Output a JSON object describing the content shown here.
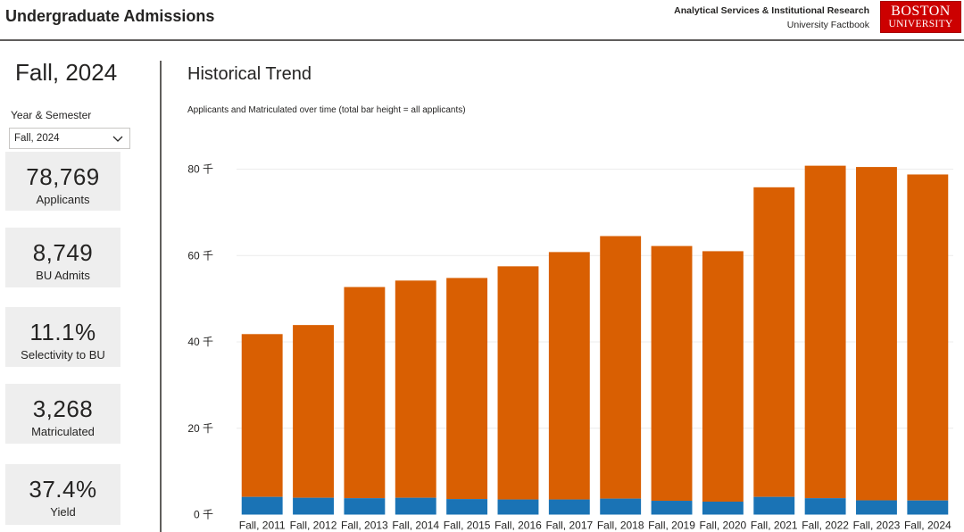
{
  "header": {
    "title": "Undergraduate Admissions",
    "org_line1": "Analytical Services & Institutional Research",
    "org_line2": "University Factbook",
    "logo_line1": "BOSTON",
    "logo_line2": "UNIVERSITY"
  },
  "sidebar": {
    "selected_semester": "Fall, 2024",
    "slicer_label": "Year & Semester",
    "slicer_value": "Fall, 2024",
    "kpis": [
      {
        "value": "78,769",
        "label": "Applicants"
      },
      {
        "value": "8,749",
        "label": "BU Admits"
      },
      {
        "value": "11.1%",
        "label": "Selectivity to BU"
      },
      {
        "value": "3,268",
        "label": "Matriculated"
      },
      {
        "value": "37.4%",
        "label": "Yield"
      }
    ]
  },
  "colors": {
    "applicants": "#d95f02",
    "matriculated": "#1a73b5",
    "logo_red": "#cc0000"
  },
  "chart_data": {
    "type": "bar",
    "title": "Historical Trend",
    "subtitle": "Applicants and Matriculated over time (total bar height = all applicants)",
    "categories": [
      "Fall, 2011",
      "Fall, 2012",
      "Fall, 2013",
      "Fall, 2014",
      "Fall, 2015",
      "Fall, 2016",
      "Fall, 2017",
      "Fall, 2018",
      "Fall, 2019",
      "Fall, 2020",
      "Fall, 2021",
      "Fall, 2022",
      "Fall, 2023",
      "Fall, 2024"
    ],
    "series": [
      {
        "values": [
          41800,
          43900,
          52700,
          54200,
          54800,
          57500,
          60800,
          64500,
          62200,
          61000,
          75800,
          80800,
          80500,
          78769
        ]
      },
      {
        "values": [
          4100,
          3900,
          3800,
          3900,
          3600,
          3500,
          3500,
          3700,
          3200,
          3000,
          4100,
          3800,
          3300,
          3268
        ]
      }
    ],
    "stacked": true,
    "ylim": [
      0,
      86000
    ],
    "yticks": [
      {
        "value": 0,
        "label": "0 千"
      },
      {
        "value": 20000,
        "label": "20 千"
      },
      {
        "value": 40000,
        "label": "40 千"
      },
      {
        "value": 60000,
        "label": "60 千"
      },
      {
        "value": 80000,
        "label": "80 千"
      }
    ],
    "grid": true,
    "legend": "none"
  }
}
